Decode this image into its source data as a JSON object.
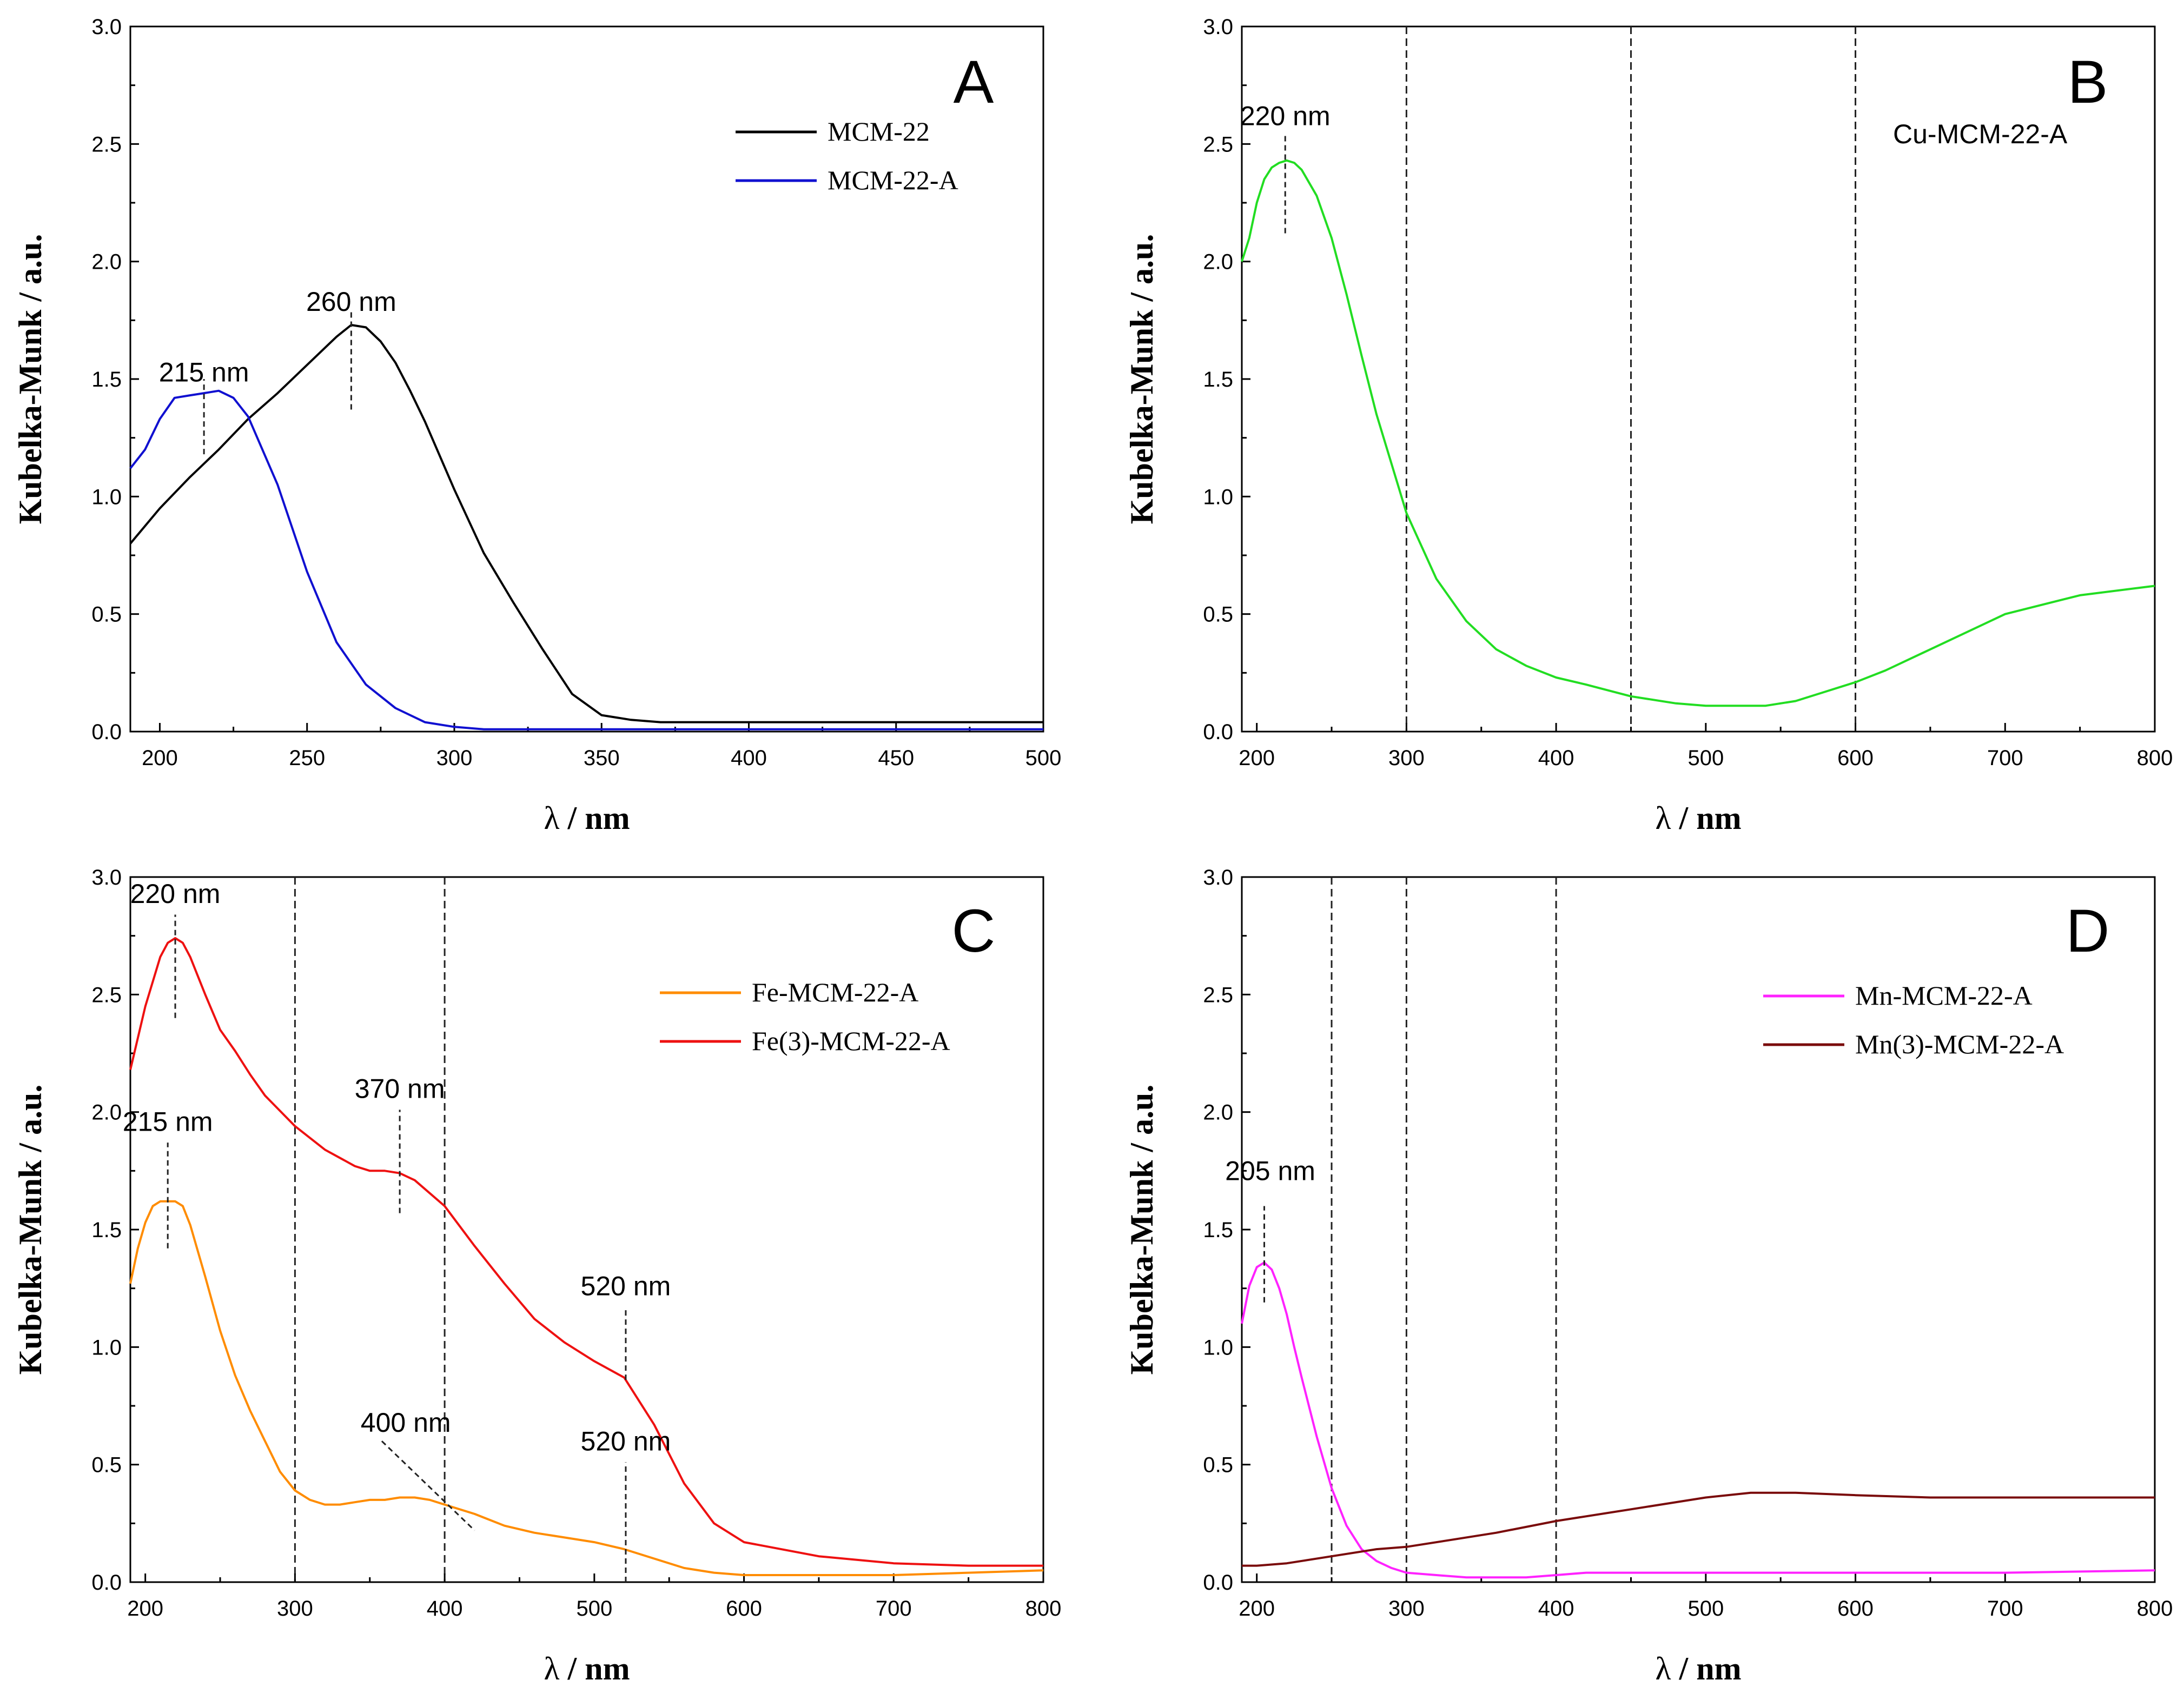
{
  "chart_data": [
    {
      "panel": "A",
      "type": "line",
      "xlabel_symbol": "λ",
      "xlabel_unit": "/ nm",
      "ylabel": "Kubelka-Munk / a.u.",
      "xlim": [
        190,
        500
      ],
      "ylim": [
        0,
        3
      ],
      "x_ticks": [
        200,
        250,
        300,
        350,
        400,
        450,
        500
      ],
      "y_ticks": [
        0.0,
        0.5,
        1.0,
        1.5,
        2.0,
        2.5,
        3.0
      ],
      "legend": "top-right",
      "series": [
        {
          "name": "MCM-22",
          "color": "#000000",
          "x": [
            190,
            200,
            210,
            220,
            230,
            240,
            250,
            260,
            265,
            270,
            275,
            280,
            285,
            290,
            300,
            310,
            320,
            330,
            340,
            350,
            360,
            370,
            380,
            400,
            450,
            500
          ],
          "y": [
            0.8,
            0.95,
            1.08,
            1.2,
            1.33,
            1.44,
            1.56,
            1.68,
            1.73,
            1.72,
            1.66,
            1.57,
            1.45,
            1.32,
            1.03,
            0.76,
            0.55,
            0.35,
            0.16,
            0.07,
            0.05,
            0.04,
            0.04,
            0.04,
            0.04,
            0.04
          ]
        },
        {
          "name": "MCM-22-A",
          "color": "#1010d0",
          "x": [
            190,
            195,
            200,
            205,
            210,
            215,
            220,
            225,
            230,
            240,
            250,
            260,
            270,
            280,
            290,
            300,
            310,
            320,
            330,
            340,
            350,
            360,
            380,
            400,
            450,
            500
          ],
          "y": [
            1.12,
            1.2,
            1.33,
            1.42,
            1.43,
            1.44,
            1.45,
            1.42,
            1.34,
            1.05,
            0.68,
            0.38,
            0.2,
            0.1,
            0.04,
            0.02,
            0.01,
            0.01,
            0.01,
            0.01,
            0.01,
            0.01,
            0.01,
            0.01,
            0.01,
            0.01
          ]
        }
      ],
      "annotations": [
        {
          "text": "260 nm",
          "x": 265,
          "y": 1.79
        },
        {
          "text": "215 nm",
          "x": 215,
          "y": 1.49
        }
      ],
      "guides": [
        {
          "x": 265,
          "y1": 1.37,
          "y2": 1.8
        },
        {
          "x": 215,
          "y1": 1.18,
          "y2": 1.5
        }
      ],
      "vlines": []
    },
    {
      "panel": "B",
      "type": "line",
      "xlabel_symbol": "λ",
      "xlabel_unit": "/ nm",
      "ylabel": "Kubelka-Munk / a.u.",
      "xlim": [
        190,
        800
      ],
      "ylim": [
        0,
        3
      ],
      "x_ticks": [
        200,
        300,
        400,
        500,
        600,
        700,
        800
      ],
      "y_ticks": [
        0.0,
        0.5,
        1.0,
        1.5,
        2.0,
        2.5,
        3.0
      ],
      "legend": "top-right",
      "series": [
        {
          "name": "Cu-MCM-22-A",
          "color": "#22dd22",
          "x": [
            190,
            195,
            200,
            205,
            210,
            215,
            220,
            225,
            230,
            240,
            250,
            260,
            270,
            280,
            300,
            320,
            340,
            360,
            380,
            400,
            420,
            450,
            480,
            500,
            520,
            540,
            560,
            580,
            600,
            620,
            650,
            700,
            750,
            800
          ],
          "y": [
            2.0,
            2.1,
            2.25,
            2.35,
            2.4,
            2.42,
            2.43,
            2.42,
            2.39,
            2.28,
            2.1,
            1.86,
            1.6,
            1.35,
            0.93,
            0.65,
            0.47,
            0.35,
            0.28,
            0.23,
            0.2,
            0.15,
            0.12,
            0.11,
            0.11,
            0.11,
            0.13,
            0.17,
            0.21,
            0.26,
            0.35,
            0.5,
            0.58,
            0.62
          ]
        }
      ],
      "annotations": [
        {
          "text": "220 nm",
          "x": 219,
          "y": 2.58
        }
      ],
      "guides": [
        {
          "x": 219,
          "y1": 2.12,
          "y2": 2.54
        }
      ],
      "vlines": [
        300,
        450,
        600
      ]
    },
    {
      "panel": "C",
      "type": "line",
      "xlabel_symbol": "λ",
      "xlabel_unit": "/ nm",
      "ylabel": "Kubelka-Munk / a.u.",
      "xlim": [
        190,
        800
      ],
      "ylim": [
        0,
        3
      ],
      "x_ticks": [
        200,
        300,
        400,
        500,
        600,
        700,
        800
      ],
      "y_ticks": [
        0.0,
        0.5,
        1.0,
        1.5,
        2.0,
        2.5,
        3.0
      ],
      "legend": "right",
      "series": [
        {
          "name": "Fe-MCM-22-A",
          "color": "#ff8c00",
          "x": [
            190,
            195,
            200,
            205,
            210,
            215,
            220,
            225,
            230,
            240,
            250,
            260,
            270,
            280,
            290,
            300,
            310,
            320,
            330,
            340,
            350,
            360,
            370,
            380,
            390,
            400,
            420,
            440,
            460,
            480,
            500,
            520,
            540,
            560,
            580,
            600,
            650,
            700,
            750,
            800
          ],
          "y": [
            1.27,
            1.42,
            1.53,
            1.6,
            1.62,
            1.62,
            1.62,
            1.6,
            1.52,
            1.3,
            1.07,
            0.88,
            0.73,
            0.6,
            0.47,
            0.39,
            0.35,
            0.33,
            0.33,
            0.34,
            0.35,
            0.35,
            0.36,
            0.36,
            0.35,
            0.33,
            0.29,
            0.24,
            0.21,
            0.19,
            0.17,
            0.14,
            0.1,
            0.06,
            0.04,
            0.03,
            0.03,
            0.03,
            0.04,
            0.05
          ]
        },
        {
          "name": "Fe(3)-MCM-22-A",
          "color": "#ee1111",
          "x": [
            190,
            200,
            210,
            215,
            220,
            225,
            230,
            240,
            250,
            260,
            270,
            280,
            300,
            320,
            340,
            350,
            360,
            370,
            380,
            400,
            420,
            440,
            460,
            480,
            500,
            520,
            540,
            560,
            580,
            600,
            650,
            700,
            750,
            800
          ],
          "y": [
            2.18,
            2.45,
            2.66,
            2.72,
            2.74,
            2.72,
            2.66,
            2.5,
            2.35,
            2.26,
            2.16,
            2.07,
            1.94,
            1.84,
            1.77,
            1.75,
            1.75,
            1.74,
            1.71,
            1.6,
            1.43,
            1.27,
            1.12,
            1.02,
            0.94,
            0.87,
            0.67,
            0.42,
            0.25,
            0.17,
            0.11,
            0.08,
            0.07,
            0.07
          ]
        }
      ],
      "annotations": [
        {
          "text": "220 nm",
          "x": 220,
          "y": 2.89
        },
        {
          "text": "215 nm",
          "x": 215,
          "y": 1.92
        },
        {
          "text": "370 nm",
          "x": 370,
          "y": 2.06
        },
        {
          "text": "520 nm",
          "x": 521,
          "y": 1.22
        },
        {
          "text": "400 nm",
          "x": 374,
          "y": 0.64
        },
        {
          "text": "520 nm",
          "x": 521,
          "y": 0.56
        }
      ],
      "guides": [
        {
          "x": 220,
          "y1": 2.4,
          "y2": 2.84
        },
        {
          "x": 215,
          "y1": 1.42,
          "y2": 1.87
        },
        {
          "x": 370,
          "y1": 1.57,
          "y2": 2.01
        },
        {
          "x": 521,
          "y1": 0.86,
          "y2": 1.17
        },
        {
          "x": 521,
          "y1": 0.0,
          "y2": 0.51
        }
      ],
      "diag_guides": [
        {
          "x1": 358,
          "y1": 0.6,
          "x2": 420,
          "y2": 0.22
        }
      ],
      "vlines": [
        300,
        400
      ]
    },
    {
      "panel": "D",
      "type": "line",
      "xlabel_symbol": "λ",
      "xlabel_unit": "/ nm",
      "ylabel": "Kubelka-Munk / a.u.",
      "xlim": [
        190,
        800
      ],
      "ylim": [
        0,
        3
      ],
      "x_ticks": [
        200,
        300,
        400,
        500,
        600,
        700,
        800
      ],
      "y_ticks": [
        0.0,
        0.5,
        1.0,
        1.5,
        2.0,
        2.5,
        3.0
      ],
      "legend": "top-right",
      "series": [
        {
          "name": "Mn-MCM-22-A",
          "color": "#ff22ff",
          "x": [
            190,
            195,
            200,
            205,
            210,
            215,
            220,
            225,
            230,
            240,
            250,
            260,
            270,
            280,
            290,
            300,
            320,
            340,
            360,
            380,
            400,
            420,
            450,
            500,
            550,
            600,
            700,
            800
          ],
          "y": [
            1.1,
            1.26,
            1.34,
            1.36,
            1.33,
            1.25,
            1.14,
            1.0,
            0.87,
            0.62,
            0.4,
            0.24,
            0.14,
            0.09,
            0.06,
            0.04,
            0.03,
            0.02,
            0.02,
            0.02,
            0.03,
            0.04,
            0.04,
            0.04,
            0.04,
            0.04,
            0.04,
            0.05
          ]
        },
        {
          "name": "Mn(3)-MCM-22-A",
          "color": "#7a0b0b",
          "x": [
            190,
            200,
            220,
            250,
            280,
            300,
            330,
            360,
            400,
            450,
            500,
            530,
            560,
            600,
            650,
            700,
            750,
            800
          ],
          "y": [
            0.07,
            0.07,
            0.08,
            0.11,
            0.14,
            0.15,
            0.18,
            0.21,
            0.26,
            0.31,
            0.36,
            0.38,
            0.38,
            0.37,
            0.36,
            0.36,
            0.36,
            0.36
          ]
        }
      ],
      "annotations": [
        {
          "text": "205 nm",
          "x": 209,
          "y": 1.71
        }
      ],
      "guides": [
        {
          "x": 205,
          "y1": 1.19,
          "y2": 1.6
        }
      ],
      "vlines": [
        250,
        300,
        400
      ]
    }
  ]
}
